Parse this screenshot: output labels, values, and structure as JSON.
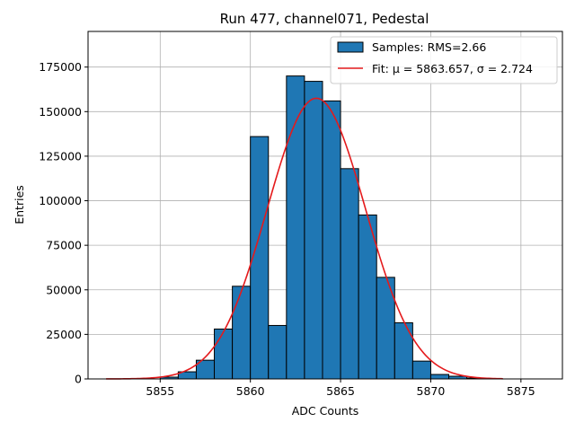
{
  "chart_data": {
    "type": "bar",
    "title": "Run 477, channel071, Pedestal",
    "xlabel": "ADC Counts",
    "ylabel": "Entries",
    "xlim": [
      5851,
      5877.3
    ],
    "ylim": [
      0,
      195000
    ],
    "xticks": [
      5855,
      5860,
      5865,
      5870,
      5875
    ],
    "yticks": [
      0,
      25000,
      50000,
      75000,
      100000,
      125000,
      150000,
      175000
    ],
    "grid": true,
    "legend_position": "top-right",
    "bin_width": 1,
    "bins": [
      5855,
      5856,
      5857,
      5858,
      5859,
      5860,
      5861,
      5862,
      5863,
      5864,
      5865,
      5866,
      5867,
      5868,
      5869,
      5870,
      5871,
      5872
    ],
    "counts": [
      1000,
      4000,
      10500,
      28000,
      52000,
      136000,
      30000,
      170000,
      167000,
      156000,
      118000,
      92000,
      57000,
      31500,
      10000,
      2500,
      1500,
      500
    ],
    "series": [
      {
        "name": "Samples: RMS=2.66",
        "type": "histogram",
        "color": "#1f77b4",
        "edge_color": "#000000"
      },
      {
        "name": "Fit: μ = 5863.657, σ = 2.724",
        "type": "line",
        "color": "#e41a1c",
        "mu": 5863.657,
        "sigma": 2.724,
        "amplitude": 157500,
        "range": [
          5852,
          5874
        ]
      }
    ]
  }
}
